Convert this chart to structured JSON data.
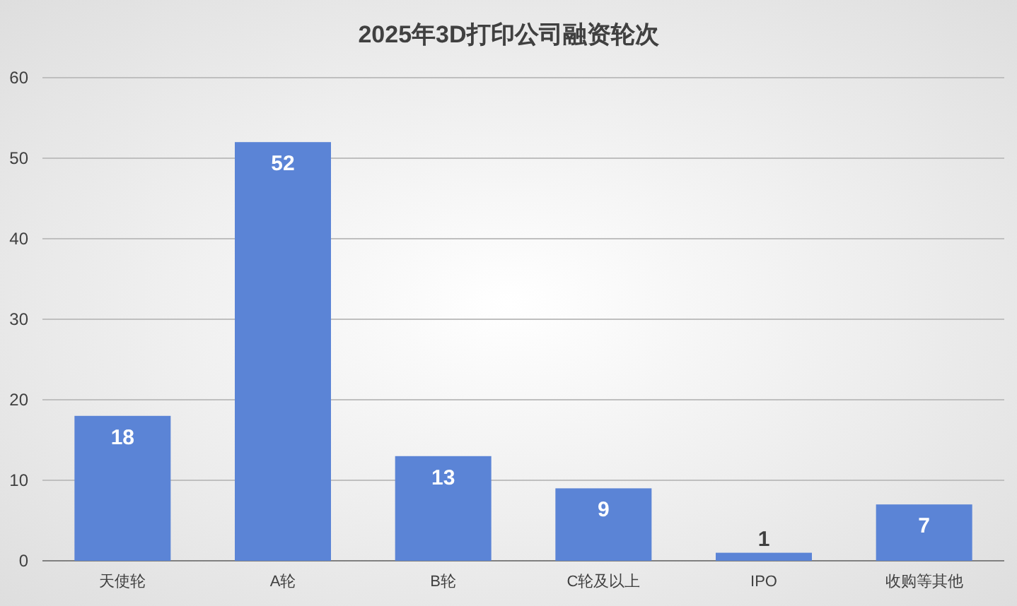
{
  "chart_data": {
    "type": "bar",
    "title": "2025年3D打印公司融资轮次",
    "categories": [
      "天使轮",
      "A轮",
      "B轮",
      "C轮及以上",
      "IPO",
      "收购等其他"
    ],
    "values": [
      18,
      52,
      13,
      9,
      1,
      7
    ],
    "color": "#5b84d6",
    "ylim": [
      0,
      60
    ],
    "yticks": [
      0,
      10,
      20,
      30,
      40,
      50,
      60
    ],
    "grid": "y",
    "data_labels": true
  }
}
